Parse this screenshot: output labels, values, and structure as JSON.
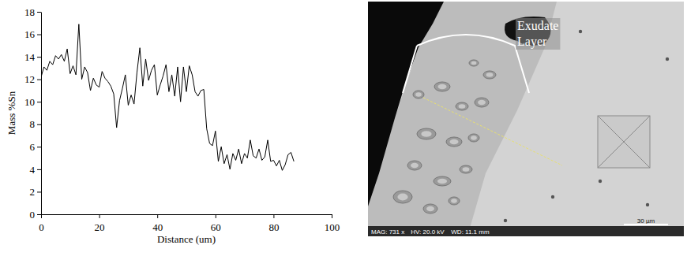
{
  "chart_data": {
    "type": "line",
    "x_label": "Distance (um)",
    "y_label": "Mass %Sn",
    "x": [
      0,
      1,
      2,
      3,
      4,
      5,
      6,
      7,
      8,
      9,
      10,
      11,
      12,
      13,
      14,
      15,
      16,
      17,
      18,
      19,
      20,
      21,
      22,
      23,
      24,
      25,
      26,
      27,
      28,
      29,
      30,
      31,
      32,
      33,
      34,
      35,
      36,
      37,
      38,
      39,
      40,
      41,
      42,
      43,
      44,
      45,
      46,
      47,
      48,
      49,
      50,
      51,
      52,
      53,
      54,
      55,
      56,
      57,
      58,
      59,
      60,
      61,
      62,
      63,
      64,
      65,
      66,
      67,
      68,
      69,
      70,
      71,
      72,
      73,
      74,
      75,
      76,
      77,
      78,
      79,
      80,
      81,
      82,
      83,
      84,
      85,
      86,
      87
    ],
    "series": [
      {
        "color": "#000000",
        "values": [
          12.2,
          13.1,
          12.8,
          13.6,
          13.3,
          14.1,
          13.8,
          14.2,
          13.6,
          14.7,
          12.5,
          13.2,
          12.4,
          16.9,
          12.0,
          13.1,
          12.6,
          11.0,
          12.1,
          11.5,
          11.3,
          12.7,
          12.1,
          11.8,
          11.4,
          10.7,
          7.7,
          10.1,
          11.2,
          12.4,
          9.7,
          10.6,
          9.8,
          12.6,
          14.8,
          11.4,
          13.8,
          11.9,
          12.8,
          13.3,
          10.6,
          11.5,
          12.3,
          13.3,
          10.9,
          12.4,
          10.5,
          13.1,
          10.0,
          13.1,
          10.9,
          13.2,
          12.4,
          10.9,
          10.5,
          11.0,
          11.1,
          7.6,
          6.3,
          6.1,
          7.4,
          4.7,
          6.0,
          4.5,
          5.3,
          4.0,
          5.4,
          4.8,
          5.8,
          4.5,
          5.4,
          5.0,
          6.6,
          5.2,
          5.0,
          5.8,
          4.8,
          5.1,
          6.6,
          4.7,
          4.8,
          4.3,
          4.8,
          3.9,
          4.4,
          5.3,
          5.5,
          4.7
        ]
      }
    ],
    "xlim": [
      0,
      100
    ],
    "xticks": [
      0,
      20,
      40,
      60,
      80,
      100
    ],
    "ylim": [
      0,
      18
    ],
    "yticks": [
      0,
      2,
      4,
      6,
      8,
      10,
      12,
      14,
      16,
      18
    ],
    "grid": false
  },
  "micrograph": {
    "annotation": "Exudate Layer",
    "info": [
      "MAG: 731 x",
      "HV: 20.0 kV",
      "WD: 11.1 mm"
    ],
    "scale_bar": "30 µm"
  }
}
